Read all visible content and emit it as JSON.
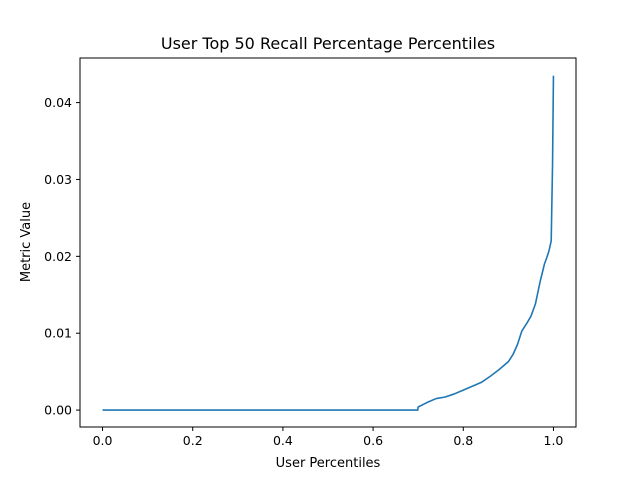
{
  "chart_data": {
    "type": "line",
    "title": "User Top 50 Recall Percentage Percentiles",
    "xlabel": "User Percentiles",
    "ylabel": "Metric Value",
    "xlim": [
      -0.05,
      1.05
    ],
    "ylim": [
      -0.0022,
      0.0458
    ],
    "xticks": [
      0.0,
      0.2,
      0.4,
      0.6,
      0.8,
      1.0
    ],
    "xtick_labels": [
      "0.0",
      "0.2",
      "0.4",
      "0.6",
      "0.8",
      "1.0"
    ],
    "yticks": [
      0.0,
      0.01,
      0.02,
      0.03,
      0.04
    ],
    "ytick_labels": [
      "0.00",
      "0.01",
      "0.02",
      "0.03",
      "0.04"
    ],
    "grid": false,
    "colors": {
      "line": "#1f77b4",
      "axes": "#000000",
      "background": "#ffffff"
    },
    "series": [
      {
        "x": [
          0.0,
          0.1,
          0.2,
          0.3,
          0.4,
          0.5,
          0.6,
          0.699,
          0.7,
          0.72,
          0.74,
          0.76,
          0.78,
          0.8,
          0.82,
          0.84,
          0.86,
          0.88,
          0.9,
          0.91,
          0.92,
          0.93,
          0.94,
          0.95,
          0.96,
          0.97,
          0.975,
          0.98,
          0.985,
          0.99,
          0.995,
          0.998,
          1.0
        ],
        "y": [
          0.0,
          0.0,
          0.0,
          0.0,
          0.0,
          0.0,
          0.0,
          0.0,
          0.0004,
          0.001,
          0.0015,
          0.0017,
          0.0021,
          0.0026,
          0.0031,
          0.0036,
          0.0044,
          0.0053,
          0.0063,
          0.0072,
          0.0085,
          0.0103,
          0.0112,
          0.0122,
          0.0138,
          0.0166,
          0.0178,
          0.019,
          0.0198,
          0.0207,
          0.022,
          0.032,
          0.0435
        ]
      }
    ]
  }
}
